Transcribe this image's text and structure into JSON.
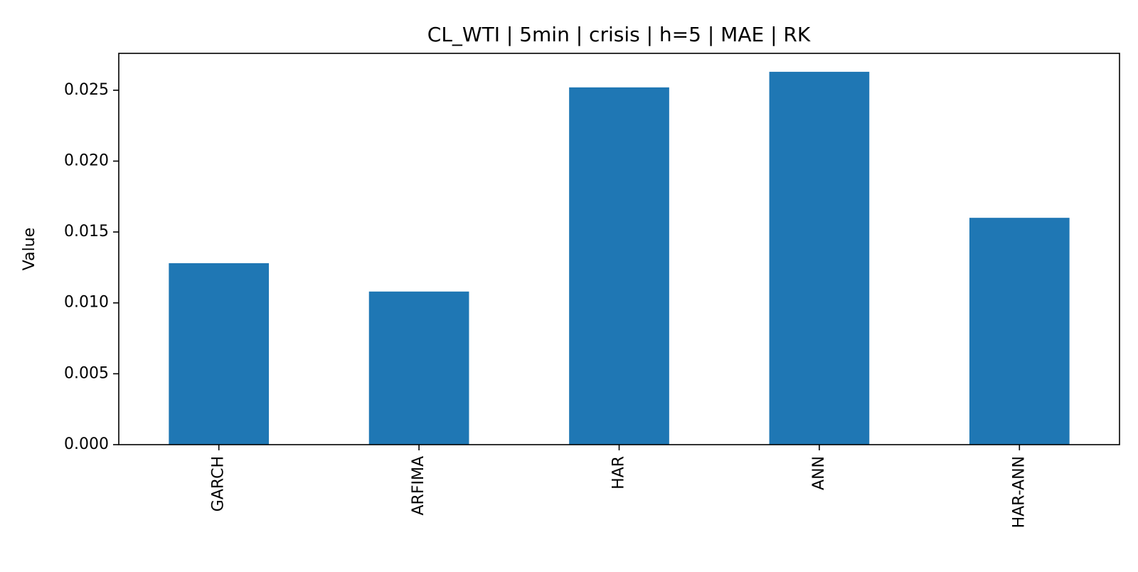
{
  "chart_data": {
    "type": "bar",
    "title": "CL_WTI | 5min | crisis | h=5 | MAE | RK",
    "xlabel": "",
    "ylabel": "Value",
    "categories": [
      "GARCH",
      "ARFIMA",
      "HAR",
      "ANN",
      "HAR-ANN"
    ],
    "values": [
      0.0128,
      0.0108,
      0.0252,
      0.0263,
      0.016
    ],
    "ylim": [
      0,
      0.0276
    ],
    "yticks": [
      0.0,
      0.005,
      0.01,
      0.015,
      0.02,
      0.025
    ],
    "ytick_labels": [
      "0.000",
      "0.005",
      "0.010",
      "0.015",
      "0.020",
      "0.025"
    ],
    "grid": false,
    "legend": "none",
    "bar_color": "#1f77b4"
  }
}
